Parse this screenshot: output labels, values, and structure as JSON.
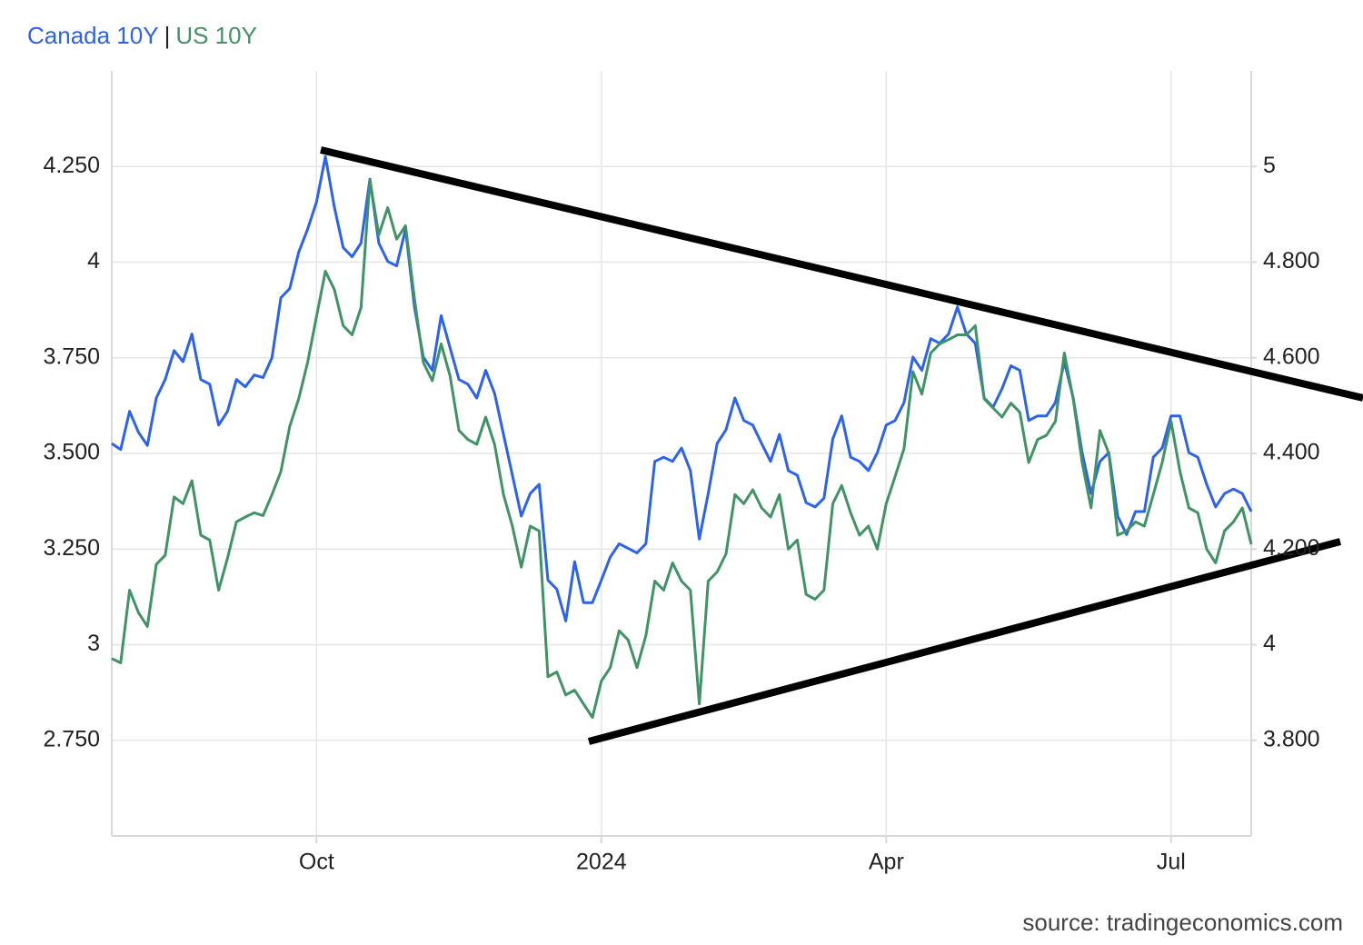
{
  "chart_data": {
    "type": "line",
    "legend_separator": "|",
    "source": "source: tradingeconomics.com",
    "categories": [
      null,
      null,
      null,
      null,
      null,
      null,
      null,
      null,
      null,
      null,
      null,
      null,
      null,
      null,
      null,
      null,
      null,
      null,
      null,
      null,
      null,
      null,
      null,
      "Oct",
      null,
      null,
      null,
      null,
      null,
      null,
      null,
      null,
      null,
      null,
      null,
      null,
      null,
      null,
      null,
      null,
      null,
      null,
      null,
      null,
      null,
      null,
      null,
      null,
      null,
      null,
      null,
      null,
      null,
      null,
      null,
      "2024",
      null,
      null,
      null,
      null,
      null,
      null,
      null,
      null,
      null,
      null,
      null,
      null,
      null,
      null,
      null,
      null,
      null,
      null,
      null,
      null,
      null,
      null,
      null,
      null,
      null,
      null,
      null,
      null,
      null,
      null,
      null,
      "Apr",
      null,
      null,
      null,
      null,
      null,
      null,
      null,
      null,
      null,
      null,
      null,
      null,
      null,
      null,
      null,
      null,
      null,
      null,
      null,
      null,
      null,
      null,
      null,
      null,
      null,
      null,
      null,
      null,
      null,
      null,
      null,
      "Jul",
      null,
      null,
      null,
      null,
      null,
      null,
      null,
      null,
      null
    ],
    "series": [
      {
        "name": "Canada 10Y",
        "color": "#2b63f0",
        "axis": "y",
        "values": [
          3.526,
          3.51,
          3.61,
          3.555,
          3.521,
          3.645,
          3.693,
          3.769,
          3.74,
          3.812,
          3.693,
          3.681,
          3.574,
          3.61,
          3.693,
          3.674,
          3.705,
          3.698,
          3.75,
          3.907,
          3.931,
          4.026,
          4.086,
          4.157,
          4.276,
          4.145,
          4.038,
          4.014,
          4.05,
          4.217,
          4.05,
          4.002,
          3.99,
          4.086,
          3.883,
          3.752,
          3.717,
          3.86,
          3.776,
          3.693,
          3.681,
          3.645,
          3.717,
          3.657,
          3.55,
          3.443,
          3.336,
          3.395,
          3.419,
          3.169,
          3.145,
          3.062,
          3.217,
          3.11,
          3.11,
          3.169,
          3.229,
          3.264,
          3.252,
          3.24,
          3.264,
          3.479,
          3.49,
          3.479,
          3.514,
          3.455,
          3.276,
          3.395,
          3.526,
          3.562,
          3.645,
          3.586,
          3.574,
          3.526,
          3.479,
          3.55,
          3.455,
          3.443,
          3.371,
          3.36,
          3.383,
          3.538,
          3.598,
          3.49,
          3.479,
          3.455,
          3.502,
          3.574,
          3.586,
          3.633,
          3.752,
          3.717,
          3.8,
          3.788,
          3.812,
          3.883,
          3.812,
          3.788,
          3.645,
          3.621,
          3.669,
          3.729,
          3.717,
          3.586,
          3.598,
          3.598,
          3.633,
          3.74,
          3.645,
          3.502,
          3.395,
          3.479,
          3.502,
          3.336,
          3.288,
          3.348,
          3.348,
          3.49,
          3.514,
          3.598,
          3.598,
          3.502,
          3.49,
          3.419,
          3.36,
          3.395,
          3.407,
          3.395,
          3.348
        ]
      },
      {
        "name": "US 10Y",
        "color": "#3f9464",
        "axis": "y2",
        "values": [
          3.971,
          3.962,
          4.114,
          4.067,
          4.038,
          4.168,
          4.187,
          4.309,
          4.295,
          4.343,
          4.229,
          4.219,
          4.114,
          4.181,
          4.257,
          4.267,
          4.276,
          4.27,
          4.314,
          4.362,
          4.457,
          4.514,
          4.59,
          4.686,
          4.781,
          4.743,
          4.667,
          4.648,
          4.705,
          4.971,
          4.857,
          4.914,
          4.848,
          4.876,
          4.724,
          4.59,
          4.552,
          4.629,
          4.562,
          4.448,
          4.429,
          4.419,
          4.476,
          4.419,
          4.314,
          4.248,
          4.162,
          4.248,
          4.238,
          3.933,
          3.943,
          3.895,
          3.905,
          3.876,
          3.848,
          3.924,
          3.952,
          4.029,
          4.01,
          3.952,
          4.019,
          4.133,
          4.114,
          4.171,
          4.133,
          4.114,
          3.876,
          4.133,
          4.152,
          4.19,
          4.314,
          4.295,
          4.324,
          4.286,
          4.267,
          4.314,
          4.2,
          4.219,
          4.105,
          4.095,
          4.114,
          4.295,
          4.333,
          4.276,
          4.229,
          4.248,
          4.2,
          4.295,
          4.352,
          4.41,
          4.571,
          4.524,
          4.61,
          4.629,
          4.638,
          4.648,
          4.648,
          4.667,
          4.514,
          4.495,
          4.476,
          4.505,
          4.486,
          4.381,
          4.429,
          4.438,
          4.467,
          4.61,
          4.514,
          4.381,
          4.286,
          4.448,
          4.4,
          4.229,
          4.238,
          4.257,
          4.248,
          4.314,
          4.381,
          4.467,
          4.362,
          4.286,
          4.276,
          4.2,
          4.171,
          4.238,
          4.257,
          4.286,
          4.21
        ]
      }
    ],
    "ylim": [
      2.5,
      4.5
    ],
    "yticks": [
      {
        "value": 2.75,
        "label": "2.750"
      },
      3,
      {
        "value": 3.25,
        "label": "3.250"
      },
      {
        "value": 3.5,
        "label": "3.500"
      },
      {
        "value": 3.75,
        "label": "3.750"
      },
      4,
      {
        "value": 4.25,
        "label": "4.250"
      }
    ],
    "y2lim": [
      3.6,
      5.2
    ],
    "y2ticks": [
      {
        "value": 3.8,
        "label": "3.800"
      },
      4,
      {
        "value": 4.2,
        "label": "4.200"
      },
      {
        "value": 4.4,
        "label": "4.400"
      },
      {
        "value": 4.6,
        "label": "4.600"
      },
      {
        "value": 4.8,
        "label": "4.800"
      },
      5
    ],
    "grid": true
  }
}
